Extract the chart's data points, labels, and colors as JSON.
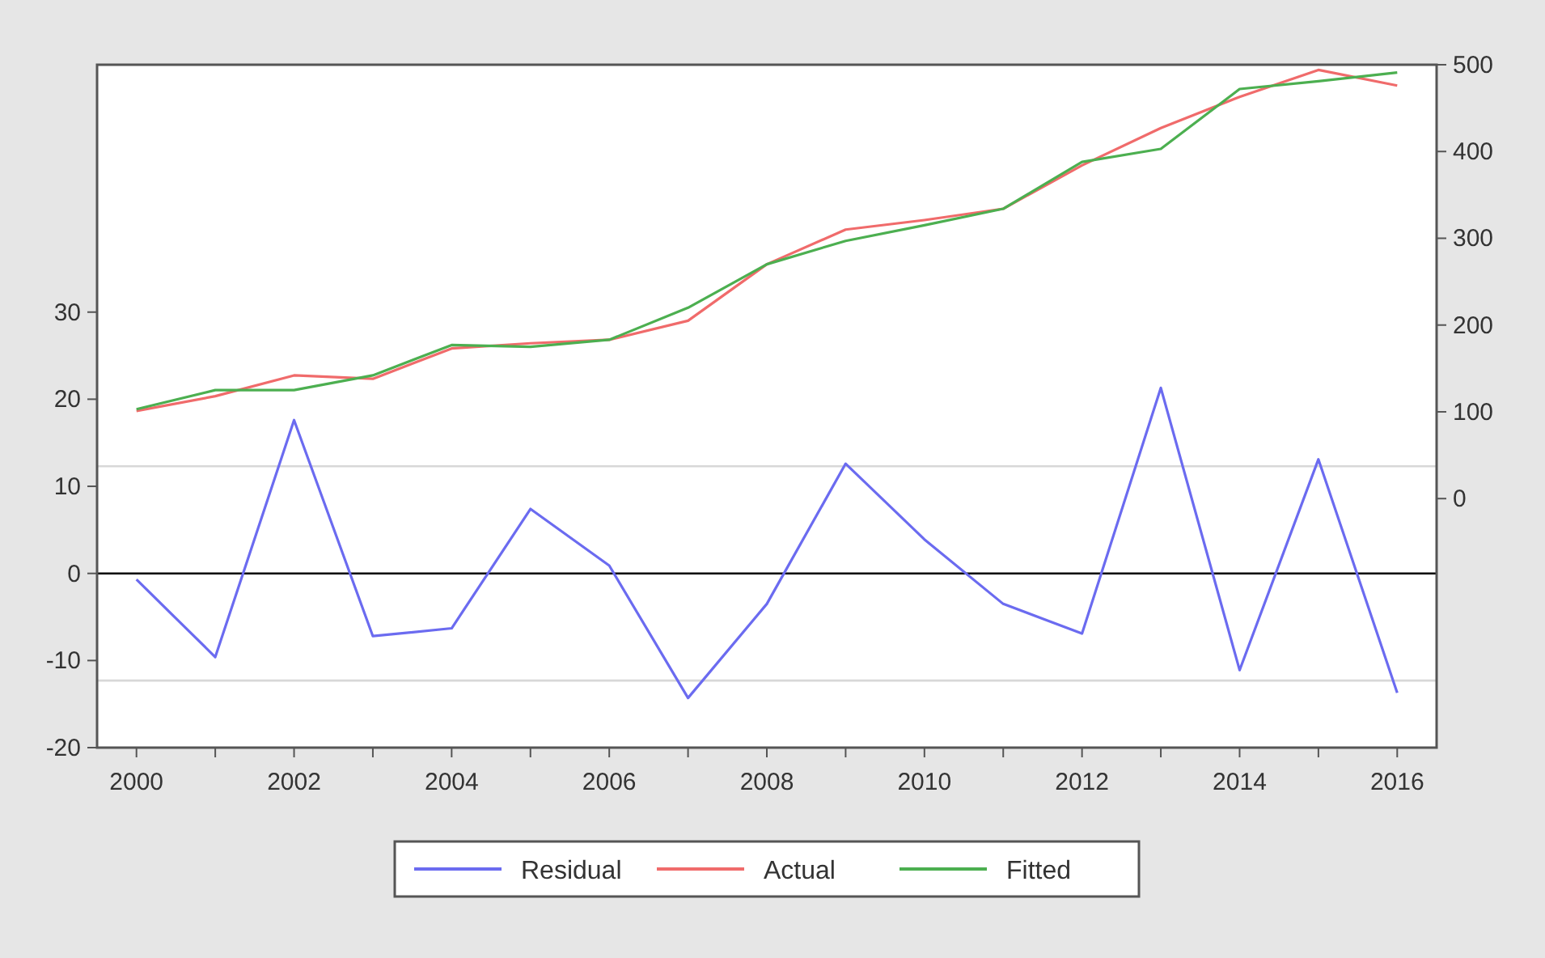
{
  "chart_data": {
    "type": "line",
    "x": [
      2000,
      2001,
      2002,
      2003,
      2004,
      2005,
      2006,
      2007,
      2008,
      2009,
      2010,
      2011,
      2012,
      2013,
      2014,
      2015,
      2016
    ],
    "xlim": [
      1999.5,
      2016.5
    ],
    "xticks": [
      2000,
      {
        "value": 2001,
        "label": null
      },
      2002,
      {
        "value": 2003,
        "label": null
      },
      2004,
      {
        "value": 2005,
        "label": null
      },
      2006,
      {
        "value": 2007,
        "label": null
      },
      2008,
      {
        "value": 2009,
        "label": null
      },
      2010,
      {
        "value": 2011,
        "label": null
      },
      2012,
      {
        "value": 2013,
        "label": null
      },
      2014,
      {
        "value": 2015,
        "label": null
      },
      2016
    ],
    "ylim": [
      -20,
      58.4
    ],
    "yticks": [
      -20,
      -10,
      0,
      10,
      20,
      30
    ],
    "y2lim": [
      -287,
      500
    ],
    "y2ticks": [
      0,
      100,
      200,
      300,
      400,
      500
    ],
    "series": [
      {
        "name": "Residual",
        "color": "#6b6bf0",
        "axis": "y",
        "values": [
          -0.7,
          -9.6,
          17.6,
          -7.2,
          -6.3,
          7.4,
          0.9,
          -14.3,
          -3.5,
          12.6,
          3.9,
          -3.5,
          -6.9,
          21.3,
          -11.1,
          13.1,
          -13.7
        ]
      },
      {
        "name": "Actual",
        "color": "#f06b6b",
        "axis": "y2",
        "values": [
          101,
          118,
          142,
          138,
          173,
          179,
          183,
          205,
          270,
          310,
          321,
          334,
          384,
          427,
          463,
          494,
          476
        ]
      },
      {
        "name": "Fitted",
        "color": "#4caf50",
        "axis": "y2",
        "values": [
          103,
          125,
          125,
          142,
          177,
          175,
          183,
          220,
          270,
          297,
          315,
          334,
          388,
          403,
          472,
          481,
          491
        ]
      }
    ],
    "ref_lines": [
      {
        "axis": "y",
        "value": 0,
        "color": "#000000"
      },
      {
        "axis": "y",
        "value": 12.3,
        "color": "#d8d8d8"
      },
      {
        "axis": "y",
        "value": -12.3,
        "color": "#d8d8d8"
      }
    ],
    "grid": false,
    "legend": "bottom",
    "marker": "none",
    "line_style": "solid"
  }
}
